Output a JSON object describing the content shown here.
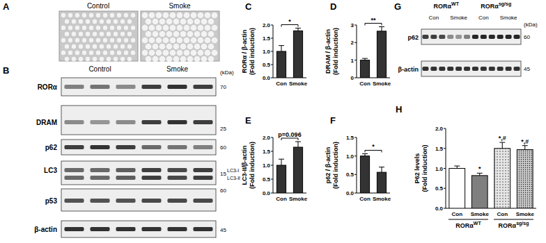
{
  "figure": {
    "panel_A": {
      "label": "A",
      "images": [
        "Control",
        "Smoke"
      ]
    },
    "panel_B": {
      "label": "B",
      "groups": [
        "Control",
        "Smoke"
      ],
      "unit": "(kDa)",
      "rows": [
        {
          "name": "RORα",
          "marker": 70
        },
        {
          "name": "DRAM",
          "marker": 25
        },
        {
          "name": "p62",
          "marker": 60
        },
        {
          "name": "LC3",
          "marker": 15,
          "bands": [
            "LC3-I",
            "LC3-II"
          ]
        },
        {
          "name": "p53",
          "marker": 60
        },
        {
          "name": "β-actin",
          "marker": 45
        }
      ]
    },
    "panel_G": {
      "label": "G",
      "groups": [
        {
          "label": "RORα",
          "sup": "WT"
        },
        {
          "label": "RORα",
          "sup": "sg/sg"
        }
      ],
      "conditions": [
        "Con",
        "Smoke"
      ],
      "unit": "(kDa)",
      "rows": [
        {
          "name": "p62",
          "marker": 60
        },
        {
          "name": "β-actin",
          "marker": 45
        }
      ]
    }
  },
  "chart_data": [
    {
      "type": "bar",
      "title": "C",
      "ylabel": [
        "RORα / β-actin",
        "(Fold induction)"
      ],
      "categories": [
        "Con",
        "Smoke"
      ],
      "values": [
        1.0,
        1.78
      ],
      "errors": [
        0.22,
        0.1
      ],
      "color": "#333333",
      "ylim": [
        0,
        2
      ],
      "yticks": [
        {
          "value": 0,
          "label": "0.0"
        },
        {
          "value": 0.5,
          "label": "0.5"
        },
        {
          "value": 1,
          "label": "1.0"
        },
        {
          "value": 1.5,
          "label": "1.5"
        },
        {
          "value": 2,
          "label": "2.0"
        }
      ],
      "annotation": "*"
    },
    {
      "type": "bar",
      "title": "D",
      "ylabel": [
        "DRAM / β-actin",
        "(Fold induction)"
      ],
      "categories": [
        "Con",
        "Smoke"
      ],
      "values": [
        1.0,
        2.65
      ],
      "errors": [
        0.1,
        0.25
      ],
      "color": "#333333",
      "ylim": [
        0,
        3
      ],
      "yticks": [
        0,
        1,
        2,
        3
      ],
      "annotation": "**"
    },
    {
      "type": "bar",
      "title": "E",
      "ylabel": [
        "LC3-II/β-actin",
        "(Fold induction)"
      ],
      "categories": [
        "Con",
        "Smoke"
      ],
      "values": [
        1.0,
        1.65
      ],
      "errors": [
        0.22,
        0.2
      ],
      "color": "#333333",
      "ylim": [
        0,
        2
      ],
      "yticks": [
        {
          "value": 0,
          "label": "0.0"
        },
        {
          "value": 0.5,
          "label": "0.5"
        },
        {
          "value": 1,
          "label": "1.0"
        },
        {
          "value": 1.5,
          "label": "1.5"
        },
        {
          "value": 2,
          "label": "2.0"
        }
      ],
      "annotation": "p=0.096"
    },
    {
      "type": "bar",
      "title": "F",
      "ylabel": [
        "p62 / β-actin",
        "(Fold induction)"
      ],
      "categories": [
        "Con",
        "Smoke"
      ],
      "values": [
        1.0,
        0.56
      ],
      "errors": [
        0.06,
        0.14
      ],
      "color": "#333333",
      "ylim": [
        0,
        1.5
      ],
      "yticks": [
        {
          "value": 0,
          "label": "0.0"
        },
        {
          "value": 0.5,
          "label": "0.5"
        },
        {
          "value": 1,
          "label": "1.0"
        },
        {
          "value": 1.5,
          "label": "1.5"
        }
      ],
      "annotation": "*"
    },
    {
      "type": "bar",
      "title": "H",
      "ylabel": [
        "P62 levels",
        "(Fold induction)"
      ],
      "categories": [
        "Con",
        "Smoke",
        "Con",
        "Smoke"
      ],
      "values": [
        1.0,
        0.82,
        1.5,
        1.47
      ],
      "errors": [
        0.06,
        0.06,
        0.15,
        0.1
      ],
      "colors": [
        "#ffffff",
        "#7f7f7f",
        "#e6e6e6",
        "#c8c8c8"
      ],
      "ylim": [
        0,
        2
      ],
      "yticks": [
        {
          "value": 0,
          "label": "0.0"
        },
        {
          "value": 0.5,
          "label": "0.5"
        },
        {
          "value": 1,
          "label": "1.0"
        },
        {
          "value": 1.5,
          "label": "1.5"
        },
        {
          "value": 2,
          "label": "2.0"
        }
      ],
      "annotations": [
        null,
        "*",
        "*,#",
        "*,#"
      ],
      "groups": [
        {
          "label": "RORα",
          "sup": "WT"
        },
        {
          "label": "RORα",
          "sup": "sg/sg"
        }
      ]
    }
  ]
}
